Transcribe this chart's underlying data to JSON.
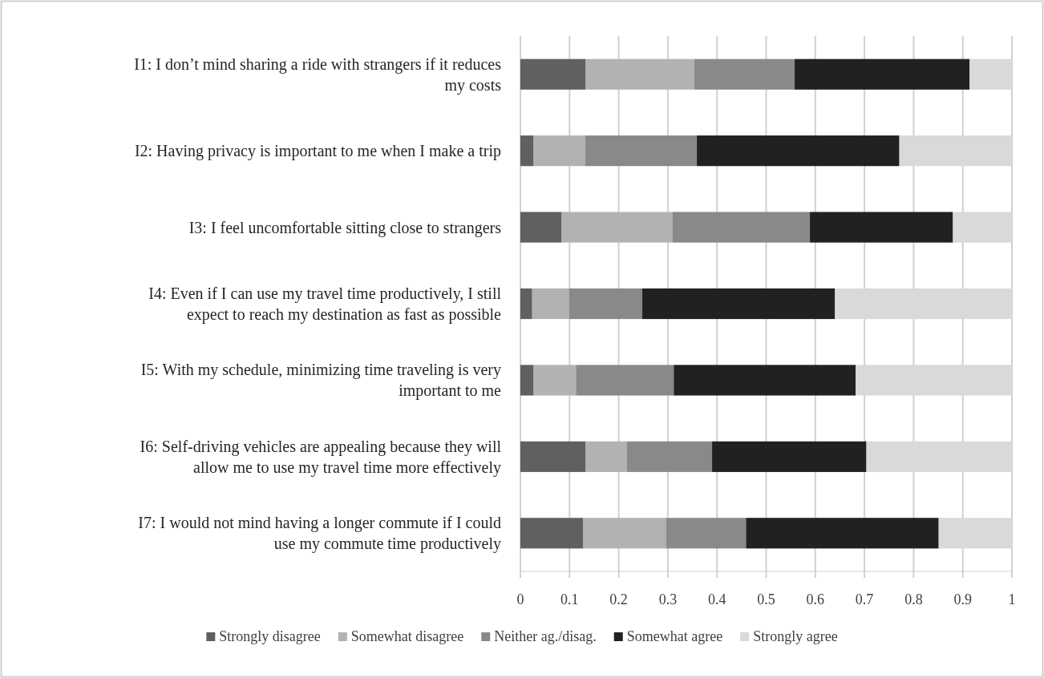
{
  "chart_data": {
    "type": "bar",
    "orientation": "horizontal",
    "stacked": true,
    "categories": [
      "I1: I don’t mind sharing a ride with strangers if it reduces my costs",
      "I2: Having privacy is important to me when I make a trip",
      "I3: I feel uncomfortable sitting close to strangers",
      "I4: Even if I can use my travel time productively, I still expect to reach my destination as fast as possible",
      "I5: With my schedule, minimizing time traveling is very important to me",
      "I6: Self-driving vehicles are appealing because they will allow me to use my travel time more effectively",
      "I7: I would not mind having a longer commute if I could use my commute time productively"
    ],
    "series": [
      {
        "name": "Strongly disagree",
        "color": "#606060",
        "values": [
          0.133,
          0.027,
          0.084,
          0.024,
          0.027,
          0.133,
          0.128
        ]
      },
      {
        "name": "Somewhat disagree",
        "color": "#b2b2b2",
        "values": [
          0.221,
          0.105,
          0.225,
          0.075,
          0.086,
          0.084,
          0.168
        ]
      },
      {
        "name": "Neither ag./disag.",
        "color": "#898989",
        "values": [
          0.204,
          0.227,
          0.28,
          0.149,
          0.199,
          0.173,
          0.163
        ]
      },
      {
        "name": "Somewhat agree",
        "color": "#212121",
        "values": [
          0.356,
          0.412,
          0.291,
          0.392,
          0.37,
          0.314,
          0.392
        ]
      },
      {
        "name": "Strongly agree",
        "color": "#d9d9d9",
        "values": [
          0.086,
          0.229,
          0.12,
          0.36,
          0.318,
          0.296,
          0.149
        ]
      }
    ],
    "xlim": [
      0,
      1
    ],
    "xticks": [
      0,
      0.1,
      0.2,
      0.3,
      0.4,
      0.5,
      0.6,
      0.7,
      0.8,
      0.9,
      1
    ],
    "grid": "x",
    "legend": "bottom"
  }
}
